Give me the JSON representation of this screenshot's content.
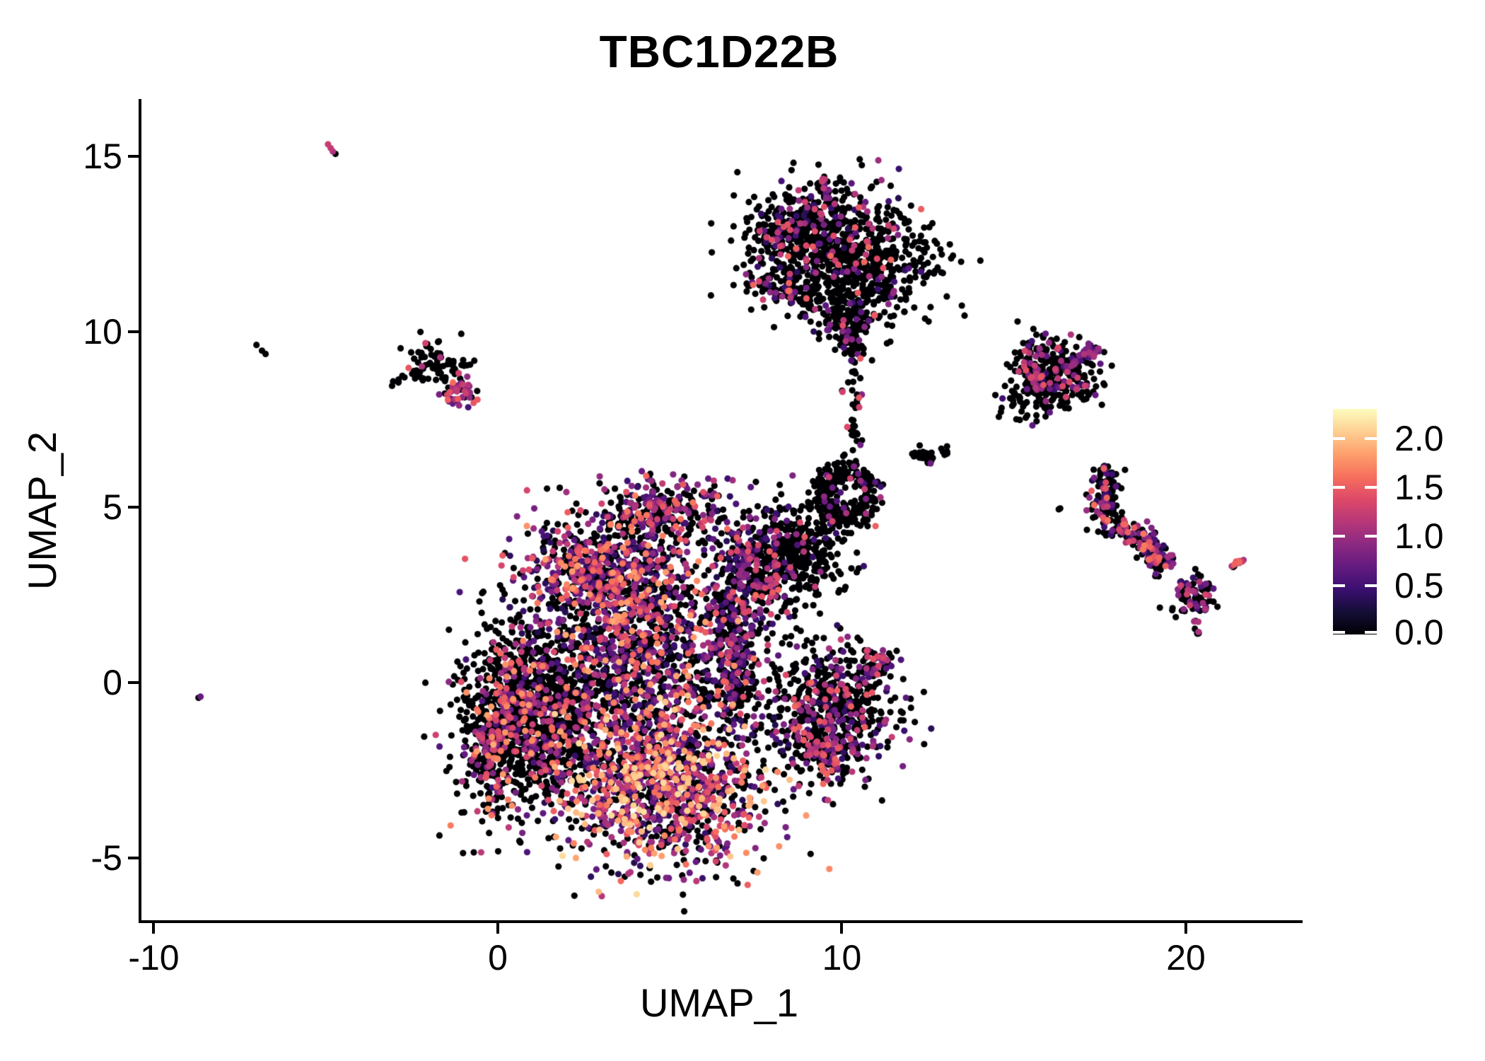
{
  "title": "TBC1D22B",
  "axes": {
    "x": {
      "label": "UMAP_1",
      "tick_values": [
        -10,
        0,
        10,
        20
      ]
    },
    "y": {
      "label": "UMAP_2",
      "tick_values": [
        15,
        10,
        5,
        0,
        -5
      ]
    }
  },
  "legend": {
    "tick_labels": [
      "2.0",
      "1.5",
      "1.0",
      "0.5",
      "0.0"
    ],
    "tick_values": [
      2.0,
      1.5,
      1.0,
      0.5,
      0.0
    ]
  },
  "chart_data": {
    "type": "scatter",
    "title": "TBC1D22B",
    "xlabel": "UMAP_1",
    "ylabel": "UMAP_2",
    "x_domain": [
      -10.4,
      23.35
    ],
    "y_domain": [
      -6.81,
      16.63
    ],
    "x_ticks": [
      -10,
      0,
      10,
      20
    ],
    "y_ticks": [
      15,
      10,
      5,
      0,
      -5
    ],
    "grid": false,
    "legend_position": "right",
    "point_radius_px": 4.6,
    "colormap": {
      "name": "magma",
      "domain": [
        0,
        2.3
      ],
      "stops": [
        "#000004",
        "#140e36",
        "#3b0f70",
        "#641a80",
        "#8c2981",
        "#b73779",
        "#de4968",
        "#f7705c",
        "#fe9f6d",
        "#fecf92",
        "#fcfdbf"
      ]
    },
    "seed": 1234,
    "clusters": [
      {
        "name": "main-left-lobe",
        "type": "gauss",
        "n": 1150,
        "cx": 0.95,
        "cy": -0.95,
        "sx": 1.0,
        "sy": 1.3,
        "rot": -12,
        "p0": 0.8,
        "vmin": 0.5,
        "vmax": 1.85,
        "bias": 1.25
      },
      {
        "name": "main-left-rim",
        "type": "gauss",
        "n": 240,
        "cx": -0.05,
        "cy": -1.5,
        "sx": 0.3,
        "sy": 1.15,
        "rot": -5,
        "p0": 0.7,
        "vmin": 0.7,
        "vmax": 1.9,
        "bias": 1.1
      },
      {
        "name": "main-bottom-colorful",
        "type": "gauss",
        "n": 1300,
        "cx": 4.7,
        "cy": -3.0,
        "sx": 1.55,
        "sy": 1.1,
        "rot": -8,
        "p0": 0.38,
        "vmin": 0.3,
        "vmax": 2.15,
        "bias": 1.15
      },
      {
        "name": "main-central",
        "type": "gauss",
        "n": 1050,
        "cx": 4.2,
        "cy": 0.5,
        "sx": 1.65,
        "sy": 1.25,
        "rot": 0,
        "p0": 0.56,
        "vmin": 0.3,
        "vmax": 1.9,
        "bias": 1.35
      },
      {
        "name": "main-upper-band",
        "type": "gauss",
        "n": 720,
        "cx": 3.3,
        "cy": 2.95,
        "sx": 1.35,
        "sy": 0.8,
        "rot": -14,
        "p0": 0.42,
        "vmin": 0.3,
        "vmax": 1.85,
        "bias": 1.45
      },
      {
        "name": "main-top-bump",
        "type": "gauss",
        "n": 340,
        "cx": 4.7,
        "cy": 4.85,
        "sx": 0.95,
        "sy": 0.5,
        "rot": 4,
        "p0": 0.54,
        "vmin": 0.35,
        "vmax": 1.7,
        "bias": 1.3
      },
      {
        "name": "main-right-purple-band",
        "type": "gauss",
        "n": 340,
        "cx": 6.9,
        "cy": 1.3,
        "sx": 0.4,
        "sy": 1.6,
        "rot": 0,
        "p0": 0.5,
        "vmin": 0.3,
        "vmax": 1.45,
        "bias": 1.5
      },
      {
        "name": "main-bridge",
        "type": "gauss",
        "n": 150,
        "cx": 7.5,
        "cy": 3.1,
        "sx": 0.45,
        "sy": 0.55,
        "rot": 30,
        "p0": 0.6,
        "vmin": 0.3,
        "vmax": 1.5,
        "bias": 1.4
      },
      {
        "name": "mid-black-cluster",
        "type": "gauss",
        "n": 430,
        "cx": 8.6,
        "cy": 3.7,
        "sx": 0.75,
        "sy": 0.72,
        "rot": 0,
        "p0": 0.9,
        "vmin": 0.4,
        "vmax": 1.6,
        "bias": 1.2
      },
      {
        "name": "ring-cluster",
        "type": "ring",
        "n": 300,
        "cx": 10.1,
        "cy": 5.35,
        "r0": 0.72,
        "rs": 0.18,
        "p0": 0.93,
        "vmin": 0.4,
        "vmax": 1.5,
        "bias": 1.2
      },
      {
        "name": "trail-up",
        "type": "path",
        "n": 40,
        "path": [
          [
            10.25,
            6.4
          ],
          [
            10.5,
            9.3
          ]
        ],
        "jitter": 0.14,
        "p0": 0.86,
        "vmin": 0.5,
        "vmax": 1.5,
        "bias": 1
      },
      {
        "name": "salmon-pair",
        "type": "path",
        "n": 3,
        "path": [
          [
            10.38,
            8.02
          ],
          [
            10.52,
            8.08
          ]
        ],
        "jitter": 0.05,
        "p0": 0.35,
        "vmin": 1.3,
        "vmax": 1.6,
        "bias": 1
      },
      {
        "name": "mini-streak",
        "type": "path",
        "n": 26,
        "path": [
          [
            12.15,
            6.55
          ],
          [
            12.6,
            6.35
          ]
        ],
        "jitter": 0.09,
        "p0": 0.97,
        "vmin": 0.5,
        "vmax": 1.1,
        "bias": 1
      },
      {
        "name": "mini-streak-2",
        "type": "path",
        "n": 8,
        "path": [
          [
            12.95,
            6.62
          ],
          [
            13.1,
            6.58
          ]
        ],
        "jitter": 0.06,
        "p0": 1,
        "vmin": 0.5,
        "vmax": 1,
        "bias": 1
      },
      {
        "name": "right-bottom-cluster",
        "type": "gauss",
        "n": 640,
        "cx": 9.6,
        "cy": -0.85,
        "sx": 0.95,
        "sy": 0.92,
        "rot": -5,
        "p0": 0.74,
        "vmin": 0.3,
        "vmax": 1.55,
        "bias": 1.3
      },
      {
        "name": "right-bottom-hook",
        "type": "path",
        "n": 60,
        "path": [
          [
            10.55,
            0.35
          ],
          [
            11.35,
            0.6
          ]
        ],
        "jitter": 0.16,
        "p0": 0.55,
        "vmin": 0.4,
        "vmax": 1.45,
        "bias": 1
      },
      {
        "name": "right-bottom-tail",
        "type": "path",
        "n": 55,
        "path": [
          [
            9.2,
            -1.7
          ],
          [
            9.75,
            -2.55
          ]
        ],
        "jitter": 0.17,
        "p0": 0.55,
        "vmin": 0.5,
        "vmax": 1.65,
        "bias": 1
      },
      {
        "name": "top-cluster-main",
        "type": "gauss",
        "n": 800,
        "cx": 10.2,
        "cy": 12.15,
        "sx": 1.3,
        "sy": 0.95,
        "rot": -8,
        "p0": 0.87,
        "vmin": 0.3,
        "vmax": 1.6,
        "bias": 1.2
      },
      {
        "name": "top-cluster-left-wing",
        "type": "gauss",
        "n": 190,
        "cx": 8.55,
        "cy": 12.95,
        "sx": 0.72,
        "sy": 0.45,
        "rot": 22,
        "p0": 0.8,
        "vmin": 0.4,
        "vmax": 1.45,
        "bias": 1.2
      },
      {
        "name": "top-cluster-stream",
        "type": "path",
        "n": 78,
        "path": [
          [
            7.3,
            11.5
          ],
          [
            8.2,
            11.15
          ],
          [
            9.2,
            10.95
          ]
        ],
        "jitter": 0.16,
        "p0": 0.7,
        "vmin": 0.5,
        "vmax": 1.65,
        "bias": 1
      },
      {
        "name": "top-cluster-nub",
        "type": "path",
        "n": 26,
        "path": [
          [
            9.42,
            14.3
          ],
          [
            9.62,
            13.75
          ]
        ],
        "jitter": 0.1,
        "p0": 0.5,
        "vmin": 0.5,
        "vmax": 1.25,
        "bias": 1
      },
      {
        "name": "top-cluster-neck",
        "type": "gauss",
        "n": 140,
        "cx": 10.1,
        "cy": 10.8,
        "sx": 0.5,
        "sy": 0.75,
        "rot": 0,
        "p0": 0.88,
        "vmin": 0.4,
        "vmax": 1.3,
        "bias": 1
      },
      {
        "name": "top-cluster-tail",
        "type": "path",
        "n": 70,
        "path": [
          [
            10.1,
            10.3
          ],
          [
            10.35,
            9.45
          ]
        ],
        "jitter": 0.22,
        "p0": 0.85,
        "vmin": 0.4,
        "vmax": 1.3,
        "bias": 1
      },
      {
        "name": "left-cluster-black",
        "type": "gauss",
        "n": 70,
        "cx": -1.75,
        "cy": 9.1,
        "sx": 0.5,
        "sy": 0.33,
        "rot": -18,
        "p0": 0.94,
        "vmin": 0.9,
        "vmax": 1.5,
        "bias": 1
      },
      {
        "name": "left-cluster-arm",
        "type": "path",
        "n": 13,
        "path": [
          [
            -2.95,
            8.5
          ],
          [
            -2.25,
            8.85
          ]
        ],
        "jitter": 0.1,
        "p0": 1,
        "vmin": 0.5,
        "vmax": 1,
        "bias": 1
      },
      {
        "name": "left-cluster-pink",
        "type": "gauss",
        "n": 42,
        "cx": -1.05,
        "cy": 8.3,
        "sx": 0.34,
        "sy": 0.22,
        "rot": -12,
        "p0": 0.12,
        "vmin": 0.45,
        "vmax": 1.6,
        "bias": 0.95
      },
      {
        "name": "outlier-magenta",
        "type": "path",
        "n": 4,
        "path": [
          [
            -4.88,
            15.28
          ],
          [
            -4.62,
            15.05
          ]
        ],
        "jitter": 0.05,
        "p0": 0.25,
        "vmin": 1.0,
        "vmax": 1.25,
        "bias": 1
      },
      {
        "name": "outlier-black",
        "type": "path",
        "n": 3,
        "path": [
          [
            -6.95,
            9.52
          ],
          [
            -6.72,
            9.32
          ]
        ],
        "jitter": 0.05,
        "p0": 1,
        "vmin": 0.5,
        "vmax": 1,
        "bias": 1
      },
      {
        "name": "outlier-purple",
        "type": "path",
        "n": 2,
        "path": [
          [
            -8.68,
            -0.38
          ],
          [
            -8.6,
            -0.44
          ]
        ],
        "jitter": 0.03,
        "p0": 0.5,
        "vmin": 0.6,
        "vmax": 0.75,
        "bias": 1
      },
      {
        "name": "right-A-cluster",
        "type": "gauss",
        "n": 320,
        "cx": 16.1,
        "cy": 8.8,
        "sx": 0.62,
        "sy": 0.5,
        "rot": -12,
        "p0": 0.82,
        "vmin": 0.4,
        "vmax": 1.5,
        "bias": 1.2
      },
      {
        "name": "right-A-purple-arm",
        "type": "path",
        "n": 55,
        "path": [
          [
            16.55,
            8.95
          ],
          [
            17.42,
            9.55
          ]
        ],
        "jitter": 0.11,
        "p0": 0.45,
        "vmin": 0.5,
        "vmax": 1.15,
        "bias": 1
      },
      {
        "name": "right-A-pink-edge",
        "type": "gauss",
        "n": 24,
        "cx": 15.5,
        "cy": 8.85,
        "sx": 0.16,
        "sy": 0.3,
        "rot": 0,
        "p0": 0.35,
        "vmin": 0.8,
        "vmax": 1.5,
        "bias": 1
      },
      {
        "name": "right-A-sparse",
        "type": "path",
        "n": 38,
        "path": [
          [
            14.75,
            7.75
          ],
          [
            15.9,
            8.35
          ]
        ],
        "jitter": 0.28,
        "p0": 0.95,
        "vmin": 0.5,
        "vmax": 1,
        "bias": 1
      },
      {
        "name": "right-A-lone",
        "type": "path",
        "n": 2,
        "path": [
          [
            16.28,
            5.05
          ],
          [
            16.32,
            4.95
          ]
        ],
        "jitter": 0.02,
        "p0": 1,
        "vmin": 0.5,
        "vmax": 1,
        "bias": 1
      },
      {
        "name": "right-S-cluster",
        "type": "path",
        "n": 300,
        "path": [
          [
            17.55,
            6.1
          ],
          [
            17.78,
            5.55
          ],
          [
            17.5,
            5.0
          ],
          [
            18.0,
            4.5
          ],
          [
            18.7,
            4.1
          ],
          [
            19.15,
            3.7
          ],
          [
            19.3,
            3.4
          ]
        ],
        "jitter": 0.2,
        "p0": 0.62,
        "vmin": 0.3,
        "vmax": 1.7,
        "bias": 1.1
      },
      {
        "name": "small-Y-cluster",
        "type": "gauss",
        "n": 85,
        "cx": 20.3,
        "cy": 2.5,
        "sx": 0.32,
        "sy": 0.28,
        "rot": 0,
        "p0": 0.72,
        "vmin": 0.4,
        "vmax": 1.45,
        "bias": 1.1
      },
      {
        "name": "small-Y-trail",
        "type": "path",
        "n": 9,
        "path": [
          [
            20.3,
            1.95
          ],
          [
            20.42,
            1.1
          ]
        ],
        "jitter": 0.07,
        "p0": 0.75,
        "vmin": 0.5,
        "vmax": 1.2,
        "bias": 1
      },
      {
        "name": "pink-ellipse",
        "type": "path",
        "n": 10,
        "path": [
          [
            21.32,
            3.28
          ],
          [
            21.72,
            3.52
          ]
        ],
        "jitter": 0.06,
        "p0": 0.22,
        "vmin": 0.9,
        "vmax": 1.7,
        "bias": 1
      }
    ]
  }
}
